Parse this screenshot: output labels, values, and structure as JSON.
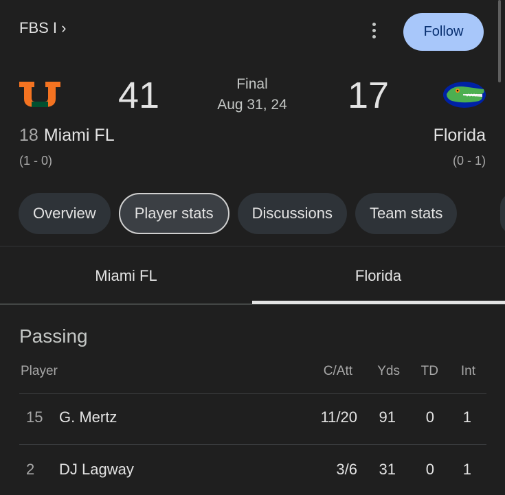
{
  "header": {
    "league": "FBS I ›",
    "follow_label": "Follow"
  },
  "game": {
    "status": "Final",
    "date": "Aug 31, 24",
    "home": {
      "rank": "18",
      "name": "Miami FL",
      "score": "41",
      "record": "(1 - 0)",
      "logo": "miami-u-logo"
    },
    "away": {
      "name": "Florida",
      "score": "17",
      "record": "(0 - 1)",
      "logo": "gators-logo"
    }
  },
  "chips": [
    "Overview",
    "Player stats",
    "Discussions",
    "Team stats"
  ],
  "selected_chip": "Player stats",
  "team_tabs": [
    "Miami FL",
    "Florida"
  ],
  "selected_team_tab": "Florida",
  "passing": {
    "title": "Passing",
    "columns": [
      "Player",
      "C/Att",
      "Yds",
      "TD",
      "Int"
    ],
    "rows": [
      {
        "number": "15",
        "name": "G. Mertz",
        "catt": "11/20",
        "yds": "91",
        "td": "0",
        "int": "1"
      },
      {
        "number": "2",
        "name": "DJ Lagway",
        "catt": "3/6",
        "yds": "31",
        "td": "0",
        "int": "1"
      }
    ]
  },
  "colors": {
    "background": "#1f1f1f",
    "follow_bg": "#a8c7fa",
    "chip_bg": "#2e3338",
    "miami_orange": "#f47321",
    "miami_green": "#005030",
    "gator_blue": "#0021a5"
  }
}
